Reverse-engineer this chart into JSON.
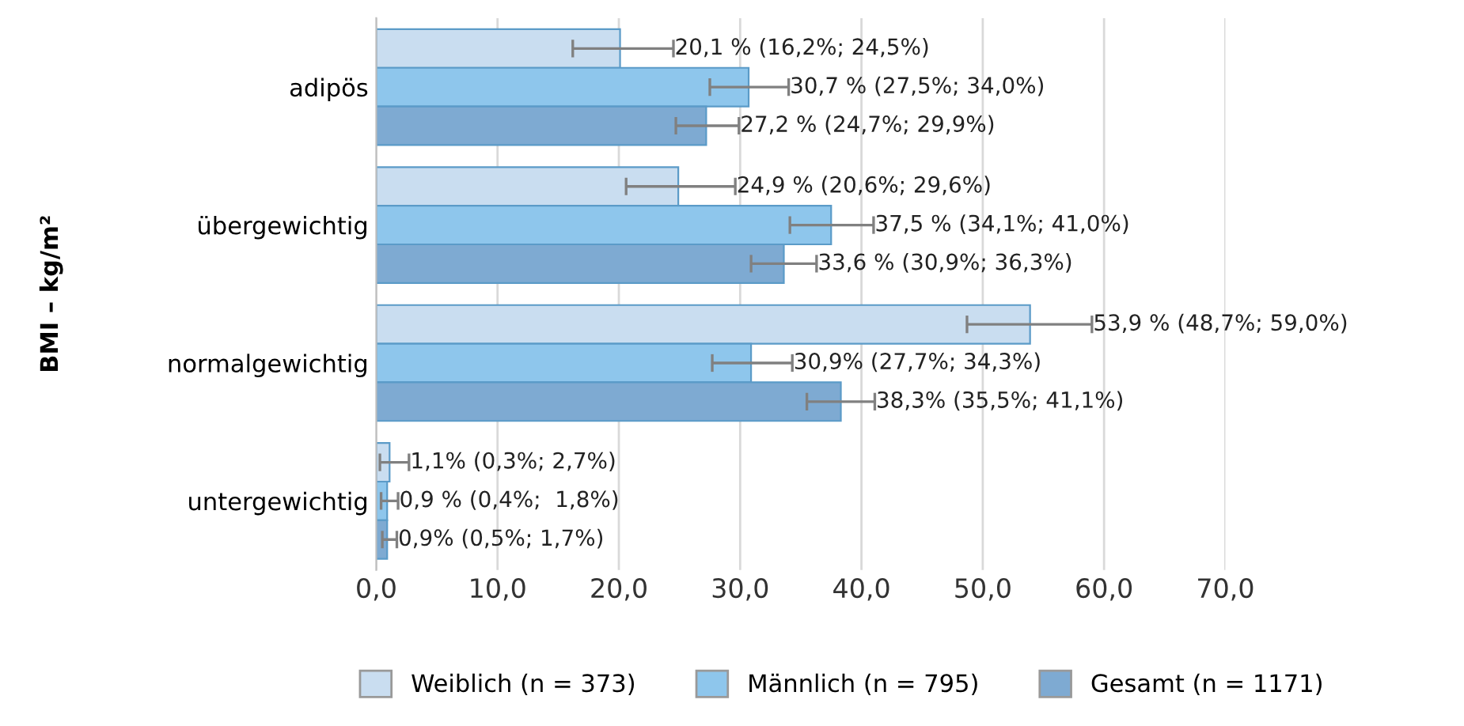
{
  "chart_data": {
    "type": "bar",
    "orientation": "horizontal",
    "ylabel": "BMI – kg/m²",
    "categories": [
      "adipös",
      "übergewichtig",
      "normalgewichtig",
      "untergewichtig"
    ],
    "series": [
      {
        "name": "Weiblich (n = 373)",
        "color": "#c9ddf0",
        "values": [
          20.1,
          24.9,
          53.9,
          1.1
        ],
        "errors": [
          [
            16.2,
            24.5
          ],
          [
            20.6,
            29.6
          ],
          [
            48.7,
            59.0
          ],
          [
            0.3,
            2.7
          ]
        ],
        "value_labels": [
          "20,1 % (16,2%; 24,5%)",
          "24,9 % (20,6%; 29,6%)",
          "53,9 % (48,7%; 59,0%)",
          "1,1% (0,3%; 2,7%)"
        ]
      },
      {
        "name": "Männlich (n = 795)",
        "color": "#8ec6ec",
        "values": [
          30.7,
          37.5,
          30.9,
          0.9
        ],
        "errors": [
          [
            27.5,
            34.0
          ],
          [
            34.1,
            41.0
          ],
          [
            27.7,
            34.3
          ],
          [
            0.4,
            1.8
          ]
        ],
        "value_labels": [
          "30,7 % (27,5%; 34,0%)",
          "37,5 % (34,1%; 41,0%)",
          "30,9% (27,7%; 34,3%)",
          "0,9 % (0,4%;  1,8%)"
        ]
      },
      {
        "name": "Gesamt (n = 1171)",
        "color": "#7eaad2",
        "values": [
          27.2,
          33.6,
          38.3,
          0.9
        ],
        "errors": [
          [
            24.7,
            29.9
          ],
          [
            30.9,
            36.3
          ],
          [
            35.5,
            41.1
          ],
          [
            0.5,
            1.7
          ]
        ],
        "value_labels": [
          "27,2 % (24,7%; 29,9%)",
          "33,6 % (30,9%; 36,3%)",
          "38,3% (35,5%; 41,1%)",
          "0,9% (0,5%; 1,7%)"
        ]
      }
    ],
    "xlim": [
      0,
      70
    ],
    "xticks": [
      {
        "value": 0,
        "label": "0,0"
      },
      {
        "value": 10,
        "label": "10,0"
      },
      {
        "value": 20,
        "label": "20,0"
      },
      {
        "value": 30,
        "label": "30,0"
      },
      {
        "value": 40,
        "label": "40,0"
      },
      {
        "value": 50,
        "label": "50,0"
      },
      {
        "value": 60,
        "label": "60,0"
      },
      {
        "value": 70,
        "label": "70,0"
      }
    ],
    "grid": "x",
    "legend": "bottom"
  }
}
